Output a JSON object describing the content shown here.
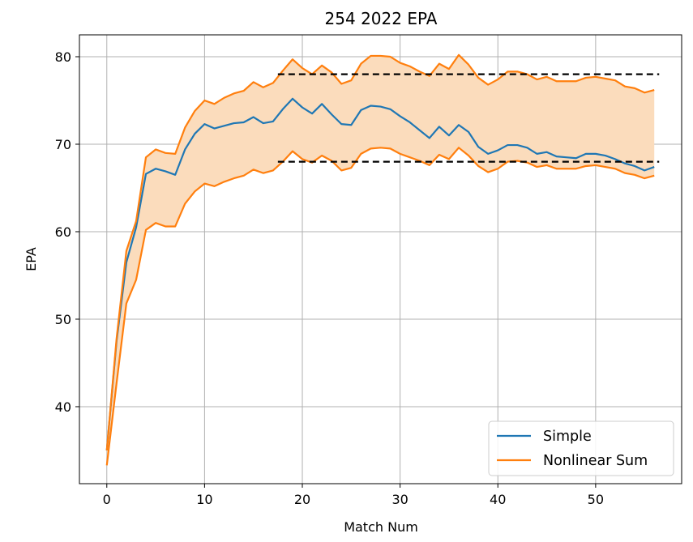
{
  "chart_data": {
    "type": "line",
    "title": "254 2022 EPA",
    "xlabel": "Match Num",
    "ylabel": "EPA",
    "xlim": [
      -2.8,
      58.8
    ],
    "ylim": [
      31.2,
      82.5
    ],
    "xticks": [
      0,
      10,
      20,
      30,
      40,
      50
    ],
    "yticks": [
      40,
      50,
      60,
      70,
      80
    ],
    "grid": true,
    "legend_position": "lower-right",
    "x": [
      0,
      1,
      2,
      3,
      4,
      5,
      6,
      7,
      8,
      9,
      10,
      11,
      12,
      13,
      14,
      15,
      16,
      17,
      18,
      19,
      20,
      21,
      22,
      23,
      24,
      25,
      26,
      27,
      28,
      29,
      30,
      31,
      32,
      33,
      34,
      35,
      36,
      37,
      38,
      39,
      40,
      41,
      42,
      43,
      44,
      45,
      46,
      47,
      48,
      49,
      50,
      51,
      52,
      53,
      54,
      55,
      56
    ],
    "series": [
      {
        "name": "Simple",
        "color": "#1f77b4",
        "values": [
          35.0,
          47.5,
          56.5,
          60.5,
          66.6,
          67.2,
          66.9,
          66.5,
          69.4,
          71.2,
          72.3,
          71.8,
          72.1,
          72.4,
          72.5,
          73.1,
          72.4,
          72.6,
          74.0,
          75.2,
          74.2,
          73.5,
          74.6,
          73.4,
          72.3,
          72.2,
          73.9,
          74.4,
          74.3,
          74.0,
          73.2,
          72.5,
          71.6,
          70.7,
          72.0,
          71.0,
          72.2,
          71.4,
          69.7,
          68.9,
          69.3,
          69.9,
          69.9,
          69.6,
          68.9,
          69.1,
          68.6,
          68.5,
          68.4,
          68.9,
          68.9,
          68.7,
          68.3,
          67.8,
          67.5,
          67.0,
          67.4
        ]
      },
      {
        "name": "Nonlinear Sum",
        "color": "#ff7f0e",
        "values_upper": [
          35.0,
          47.8,
          57.8,
          61.2,
          68.5,
          69.4,
          69.0,
          68.9,
          71.9,
          73.8,
          75.0,
          74.6,
          75.3,
          75.8,
          76.1,
          77.1,
          76.5,
          77.0,
          78.4,
          79.7,
          78.7,
          78.0,
          79.0,
          78.2,
          76.9,
          77.3,
          79.2,
          80.1,
          80.1,
          80.0,
          79.3,
          78.9,
          78.3,
          77.8,
          79.2,
          78.6,
          80.2,
          79.1,
          77.6,
          76.8,
          77.4,
          78.3,
          78.3,
          78.0,
          77.4,
          77.7,
          77.2,
          77.2,
          77.2,
          77.6,
          77.7,
          77.5,
          77.3,
          76.6,
          76.4,
          75.9,
          76.2
        ],
        "values_lower": [
          33.3,
          42.7,
          51.8,
          54.5,
          60.2,
          61.0,
          60.6,
          60.6,
          63.2,
          64.6,
          65.5,
          65.2,
          65.7,
          66.1,
          66.4,
          67.1,
          66.7,
          67.0,
          68.0,
          69.2,
          68.3,
          67.9,
          68.7,
          68.1,
          67.0,
          67.3,
          68.9,
          69.5,
          69.6,
          69.5,
          68.9,
          68.5,
          68.1,
          67.6,
          68.8,
          68.3,
          69.6,
          68.7,
          67.5,
          66.8,
          67.2,
          68.0,
          68.1,
          67.9,
          67.4,
          67.6,
          67.2,
          67.2,
          67.2,
          67.5,
          67.6,
          67.4,
          67.2,
          66.7,
          66.5,
          66.1,
          66.4
        ]
      }
    ],
    "reference_lines": [
      {
        "y": 78,
        "x_from": 17.5,
        "x_to": 56.5,
        "style": "dashed",
        "color": "#000000"
      },
      {
        "y": 68,
        "x_from": 17.5,
        "x_to": 56.5,
        "style": "dashed",
        "color": "#000000"
      }
    ],
    "band_fill_color": "#fbdcbc"
  }
}
